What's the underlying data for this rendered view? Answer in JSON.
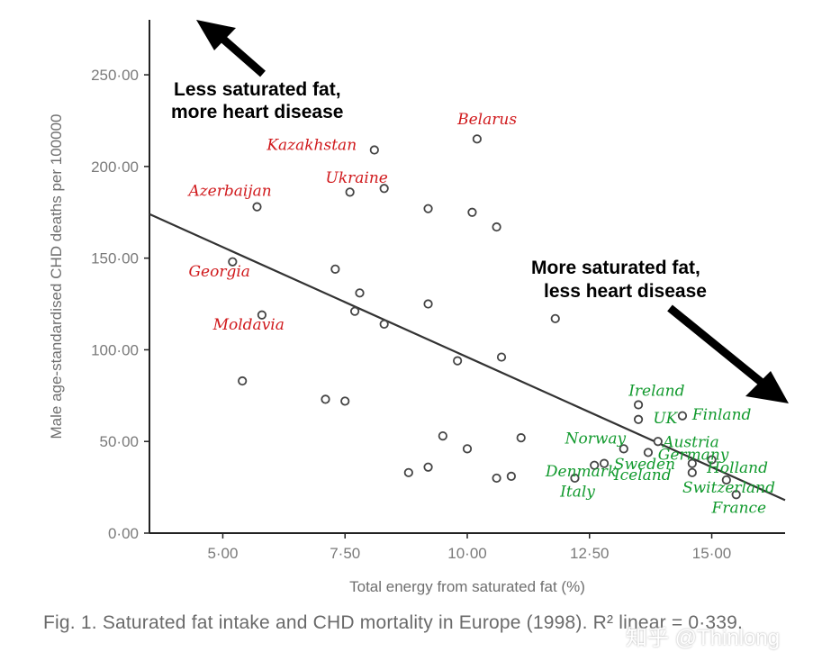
{
  "chart_data": {
    "type": "scatter",
    "title": "",
    "xlabel": "Total energy from saturated fat (%)",
    "ylabel": "Male age-standardised CHD deaths per 100000",
    "xlim": [
      3.5,
      16.5
    ],
    "ylim": [
      0,
      280
    ],
    "xticks": [
      5,
      7.5,
      10,
      12.5,
      15
    ],
    "xtick_labels": [
      "5·00",
      "7·50",
      "10·00",
      "12·50",
      "15·00"
    ],
    "yticks": [
      0,
      50,
      100,
      150,
      200,
      250
    ],
    "ytick_labels": [
      "0·00",
      "50·00",
      "100·00",
      "150·00",
      "200·00",
      "250·00"
    ],
    "grid": false,
    "points": [
      {
        "x": 5.2,
        "y": 148
      },
      {
        "x": 5.4,
        "y": 83
      },
      {
        "x": 5.7,
        "y": 178
      },
      {
        "x": 5.8,
        "y": 119
      },
      {
        "x": 7.1,
        "y": 73
      },
      {
        "x": 7.3,
        "y": 144
      },
      {
        "x": 7.5,
        "y": 72
      },
      {
        "x": 7.6,
        "y": 186
      },
      {
        "x": 7.7,
        "y": 121
      },
      {
        "x": 7.8,
        "y": 131
      },
      {
        "x": 8.1,
        "y": 209
      },
      {
        "x": 8.3,
        "y": 114
      },
      {
        "x": 8.3,
        "y": 188
      },
      {
        "x": 8.8,
        "y": 33
      },
      {
        "x": 9.2,
        "y": 177
      },
      {
        "x": 9.2,
        "y": 125
      },
      {
        "x": 9.2,
        "y": 36
      },
      {
        "x": 9.5,
        "y": 53
      },
      {
        "x": 9.8,
        "y": 94
      },
      {
        "x": 10.0,
        "y": 46
      },
      {
        "x": 10.1,
        "y": 175
      },
      {
        "x": 10.2,
        "y": 215
      },
      {
        "x": 10.6,
        "y": 167
      },
      {
        "x": 10.6,
        "y": 30
      },
      {
        "x": 10.7,
        "y": 96
      },
      {
        "x": 10.9,
        "y": 31
      },
      {
        "x": 11.1,
        "y": 52
      },
      {
        "x": 11.8,
        "y": 117
      },
      {
        "x": 12.2,
        "y": 30
      },
      {
        "x": 12.6,
        "y": 37
      },
      {
        "x": 12.8,
        "y": 38
      },
      {
        "x": 13.2,
        "y": 46
      },
      {
        "x": 13.5,
        "y": 70
      },
      {
        "x": 13.5,
        "y": 62
      },
      {
        "x": 13.7,
        "y": 44
      },
      {
        "x": 13.9,
        "y": 50
      },
      {
        "x": 14.4,
        "y": 64
      },
      {
        "x": 14.6,
        "y": 38
      },
      {
        "x": 14.6,
        "y": 33
      },
      {
        "x": 15.0,
        "y": 40
      },
      {
        "x": 15.3,
        "y": 29
      },
      {
        "x": 15.5,
        "y": 21
      }
    ],
    "regression_line": {
      "x": [
        3.5,
        16.5
      ],
      "y": [
        174,
        18
      ],
      "r2_linear": "0·339"
    },
    "country_labels_red": [
      {
        "text": "Belarus",
        "x": 9.8,
        "y": 223
      },
      {
        "text": "Kazakhstan",
        "x": 5.9,
        "y": 209
      },
      {
        "text": "Ukraine",
        "x": 7.1,
        "y": 191
      },
      {
        "text": "Azerbaijan",
        "x": 4.3,
        "y": 184
      },
      {
        "text": "Georgia",
        "x": 4.3,
        "y": 140
      },
      {
        "text": "Moldavia",
        "x": 4.8,
        "y": 111
      }
    ],
    "country_labels_green": [
      {
        "text": "Ireland",
        "x": 13.3,
        "y": 75
      },
      {
        "text": "UK",
        "x": 13.8,
        "y": 60
      },
      {
        "text": "Finland",
        "x": 14.6,
        "y": 62
      },
      {
        "text": "Norway",
        "x": 12.0,
        "y": 49
      },
      {
        "text": "Austria",
        "x": 14.0,
        "y": 47
      },
      {
        "text": "Germany",
        "x": 13.9,
        "y": 40
      },
      {
        "text": "Sweden",
        "x": 13.0,
        "y": 35
      },
      {
        "text": "Holland",
        "x": 14.9,
        "y": 33
      },
      {
        "text": "Denmark",
        "x": 11.6,
        "y": 31
      },
      {
        "text": "Iceland",
        "x": 13.0,
        "y": 29
      },
      {
        "text": "Switzerland",
        "x": 14.4,
        "y": 22
      },
      {
        "text": "Italy",
        "x": 11.9,
        "y": 20
      },
      {
        "text": "France",
        "x": 15.0,
        "y": 11
      }
    ],
    "annotations": [
      {
        "lines": [
          "Less saturated fat,",
          "more heart disease"
        ],
        "position": "top-left"
      },
      {
        "lines": [
          "More saturated fat,",
          "less heart disease"
        ],
        "position": "right"
      }
    ]
  },
  "caption": {
    "prefix": "Fig. 1.",
    "text": "Saturated fat intake and CHD mortality in Europe (1998). R² linear = 0·339."
  },
  "watermark": "知乎 @Thinlong"
}
